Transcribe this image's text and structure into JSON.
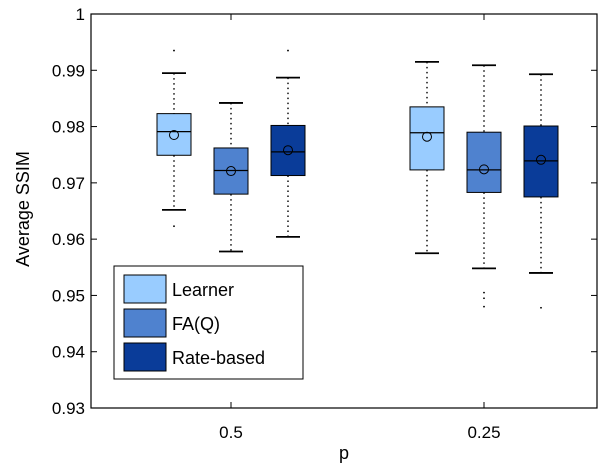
{
  "chart_data": {
    "type": "box",
    "title": "",
    "xlabel": "p",
    "ylabel": "Average SSIM",
    "ylim": [
      0.93,
      1.0
    ],
    "yticks": [
      0.93,
      0.94,
      0.95,
      0.96,
      0.97,
      0.98,
      0.99,
      1
    ],
    "ytick_labels": [
      "0.93",
      "0.94",
      "0.95",
      "0.96",
      "0.97",
      "0.98",
      "0.99",
      "1"
    ],
    "categories": [
      "0.5",
      "0.25"
    ],
    "grid": false,
    "legend_position": "bottom-left",
    "series": [
      {
        "name": "Learner",
        "color": "#99ccff",
        "boxes": [
          {
            "whisker_low": 0.9652,
            "q1": 0.9749,
            "median": 0.9791,
            "q3": 0.9823,
            "whisker_high": 0.9895,
            "mean": 0.9785,
            "outliers": [
              0.9935,
              0.9623
            ]
          },
          {
            "whisker_low": 0.9575,
            "q1": 0.9723,
            "median": 0.9789,
            "q3": 0.9835,
            "whisker_high": 0.9915,
            "mean": 0.9782,
            "outliers": []
          }
        ]
      },
      {
        "name": "FA(Q)",
        "color": "#4f82cf",
        "boxes": [
          {
            "whisker_low": 0.9578,
            "q1": 0.968,
            "median": 0.9722,
            "q3": 0.9762,
            "whisker_high": 0.9842,
            "mean": 0.9721,
            "outliers": [
              0.9545
            ]
          },
          {
            "whisker_low": 0.9548,
            "q1": 0.9683,
            "median": 0.9723,
            "q3": 0.979,
            "whisker_high": 0.9909,
            "mean": 0.9724,
            "outliers": [
              0.9505,
              0.9495,
              0.948
            ]
          }
        ]
      },
      {
        "name": "Rate-based",
        "color": "#0a3c99",
        "boxes": [
          {
            "whisker_low": 0.9604,
            "q1": 0.9713,
            "median": 0.9755,
            "q3": 0.9802,
            "whisker_high": 0.9887,
            "mean": 0.9758,
            "outliers": [
              0.9935
            ]
          },
          {
            "whisker_low": 0.954,
            "q1": 0.9675,
            "median": 0.9739,
            "q3": 0.9801,
            "whisker_high": 0.9893,
            "mean": 0.9741,
            "outliers": [
              0.9478
            ]
          }
        ]
      }
    ]
  }
}
